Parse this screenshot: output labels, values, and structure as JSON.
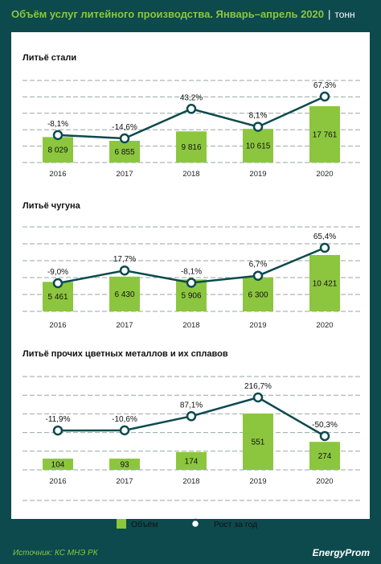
{
  "header": {
    "title": "Объём услуг литейного производства. Январь–апрель 2020",
    "separator": "|",
    "unit": "тонн"
  },
  "legend": {
    "volume_label": "Объём",
    "growth_label": "Рост за год"
  },
  "footer": {
    "source": "Источник: КС МНЭ РК",
    "logo_text": "EnergyProm"
  },
  "colors": {
    "background": "#0c4a4e",
    "bar": "#8cc63f",
    "line": "#0c4a4e",
    "title": "#8cc63f"
  },
  "chart_data": [
    {
      "type": "bar",
      "title": "Литьё стали",
      "categories": [
        "2016",
        "2017",
        "2018",
        "2019",
        "2020"
      ],
      "values": [
        8029,
        6855,
        9816,
        10615,
        17761
      ],
      "value_labels": [
        "8 029",
        "6 855",
        "9 816",
        "10 615",
        "17 761"
      ],
      "growth": [
        -8.1,
        -14.6,
        43.2,
        8.1,
        67.3
      ],
      "growth_labels": [
        "-8,1%",
        "-14,6%",
        "43,2%",
        "8,1%",
        "67,3%"
      ]
    },
    {
      "type": "bar",
      "title": "Литьё чугуна",
      "categories": [
        "2016",
        "2017",
        "2018",
        "2019",
        "2020"
      ],
      "values": [
        5461,
        6430,
        5906,
        6300,
        10421
      ],
      "value_labels": [
        "5 461",
        "6 430",
        "5 906",
        "6 300",
        "10 421"
      ],
      "growth": [
        -9.0,
        17.7,
        -8.1,
        6.7,
        65.4
      ],
      "growth_labels": [
        "-9,0%",
        "17,7%",
        "-8,1%",
        "6,7%",
        "65,4%"
      ]
    },
    {
      "type": "bar",
      "title": "Литьё прочих цветных металлов и их сплавов",
      "categories": [
        "2016",
        "2017",
        "2018",
        "2019",
        "2020"
      ],
      "values": [
        104,
        93,
        174,
        551,
        274
      ],
      "value_labels": [
        "104",
        "93",
        "174",
        "551",
        "274"
      ],
      "growth": [
        -11.9,
        -10.6,
        87.1,
        216.7,
        -50.3
      ],
      "growth_labels": [
        "-11,9%",
        "-10,6%",
        "87,1%",
        "216,7%",
        "-50,3%"
      ]
    }
  ]
}
